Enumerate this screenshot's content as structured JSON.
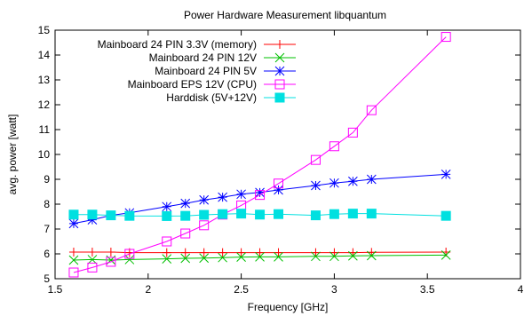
{
  "chart_data": {
    "type": "line",
    "title": "Power Hardware Measurement libquantum",
    "xlabel": "Frequency [GHz]",
    "ylabel": "avg. power [watt]",
    "xlim": [
      1.5,
      4
    ],
    "ylim": [
      5,
      15
    ],
    "xticks": [
      "1.5",
      "2",
      "2.5",
      "3",
      "3.5",
      "4"
    ],
    "yticks": [
      "5",
      "6",
      "7",
      "8",
      "9",
      "10",
      "11",
      "12",
      "13",
      "14",
      "15"
    ],
    "legend_position": "top-left",
    "grid": false,
    "x": [
      1.6,
      1.7,
      1.8,
      1.9,
      2.1,
      2.2,
      2.3,
      2.4,
      2.5,
      2.6,
      2.7,
      2.9,
      3.0,
      3.1,
      3.2,
      3.6
    ],
    "series": [
      {
        "name": "Mainboard 24 PIN 3.3V (memory)",
        "color": "#ff0000",
        "marker": "plus",
        "values": [
          6.07,
          6.07,
          6.07,
          6.05,
          6.05,
          6.05,
          6.05,
          6.05,
          6.05,
          6.05,
          6.05,
          6.05,
          6.05,
          6.05,
          6.06,
          6.07
        ]
      },
      {
        "name": "Mainboard 24 PIN 12V",
        "color": "#00c000",
        "marker": "cross",
        "values": [
          5.75,
          5.77,
          5.75,
          5.77,
          5.8,
          5.82,
          5.83,
          5.85,
          5.87,
          5.88,
          5.88,
          5.9,
          5.9,
          5.92,
          5.93,
          5.95
        ]
      },
      {
        "name": "Mainboard 24 PIN 5V",
        "color": "#0000ff",
        "marker": "star",
        "values": [
          7.22,
          7.37,
          7.55,
          7.65,
          7.9,
          8.03,
          8.17,
          8.28,
          8.4,
          8.47,
          8.57,
          8.75,
          8.85,
          8.92,
          9.0,
          9.2
        ]
      },
      {
        "name": "Mainboard EPS 12V (CPU)",
        "color": "#ff00ff",
        "marker": "square-open",
        "values": [
          5.25,
          5.45,
          5.68,
          6.0,
          6.5,
          6.82,
          7.15,
          7.58,
          7.95,
          8.37,
          8.83,
          9.78,
          10.33,
          10.88,
          11.78,
          14.73
        ]
      },
      {
        "name": "Harddisk (5V+12V)",
        "color": "#00e0e0",
        "marker": "square-filled",
        "values": [
          7.58,
          7.58,
          7.55,
          7.53,
          7.52,
          7.53,
          7.57,
          7.6,
          7.62,
          7.58,
          7.6,
          7.55,
          7.6,
          7.62,
          7.62,
          7.53
        ]
      }
    ]
  }
}
